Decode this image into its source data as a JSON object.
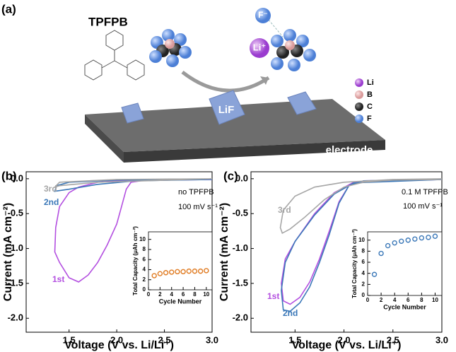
{
  "schematic": {
    "panel": "(a)",
    "molecule": "TPFPB",
    "anion": "F⁻",
    "cation": "Li⁺",
    "product": "LiF",
    "electrode": "electrode",
    "legend": [
      "Li",
      "B",
      "C",
      "F"
    ]
  },
  "chart_data": [
    {
      "type": "line",
      "panel": "(b)",
      "x_label": "Voltage (V vs. Li/Li⁺)",
      "y_label": "Current (mA cm⁻²)",
      "annotations": [
        "no TPFPB",
        "100 mV s⁻¹"
      ],
      "xlim": [
        1.05,
        3.0
      ],
      "ylim": [
        -2.2,
        0.1
      ],
      "xticks": [
        1.5,
        {
          "value": 2,
          "label": "2.0"
        },
        2.5,
        {
          "value": 3,
          "label": "3.0"
        }
      ],
      "yticks": [
        {
          "value": -2,
          "label": "-2.0"
        },
        -1.5,
        {
          "value": -1,
          "label": "-1.0"
        },
        -0.5,
        {
          "value": 0,
          "label": "0.0"
        }
      ],
      "series": [
        {
          "name": "1st",
          "color": "#b34fe0",
          "x": [
            3.0,
            2.6,
            2.3,
            2.15,
            2.1,
            2.05,
            2.0,
            1.9,
            1.8,
            1.7,
            1.6,
            1.5,
            1.4,
            1.35,
            1.36,
            1.4,
            1.5,
            1.6,
            1.8,
            2.0,
            2.5,
            3.0
          ],
          "values": [
            -0.01,
            -0.01,
            -0.02,
            -0.05,
            -0.15,
            -0.4,
            -0.65,
            -0.95,
            -1.2,
            -1.38,
            -1.48,
            -1.42,
            -1.2,
            -1.05,
            -0.7,
            -0.4,
            -0.2,
            -0.12,
            -0.05,
            -0.03,
            -0.02,
            -0.01
          ]
        },
        {
          "name": "2nd",
          "color": "#3b78b8",
          "x": [
            3.0,
            2.2,
            1.8,
            1.5,
            1.35,
            1.37,
            1.5,
            2.0,
            3.0
          ],
          "values": [
            -0.01,
            -0.03,
            -0.08,
            -0.15,
            -0.18,
            -0.1,
            -0.05,
            -0.02,
            -0.005
          ]
        },
        {
          "name": "3rd",
          "color": "#a6a6a6",
          "x": [
            3.0,
            1.8,
            1.4,
            1.35,
            1.4,
            2.0,
            3.0
          ],
          "values": [
            0,
            -0.05,
            -0.1,
            -0.12,
            -0.05,
            -0.01,
            0
          ]
        }
      ]
    },
    {
      "type": "scatter",
      "x_label": "Cycle Number",
      "y_label": "Total Capacity (μAh cm⁻²)",
      "xlim": [
        0,
        11
      ],
      "ylim": [
        0,
        11.5
      ],
      "xticks": [
        0,
        2,
        4,
        6,
        8,
        10
      ],
      "yticks": [
        0,
        2,
        4,
        6,
        8,
        10
      ],
      "color": "#e07b22",
      "x": [
        1,
        2,
        3,
        4,
        5,
        6,
        7,
        8,
        9,
        10
      ],
      "values": [
        2.8,
        3.2,
        3.4,
        3.5,
        3.6,
        3.6,
        3.7,
        3.7,
        3.7,
        3.8
      ]
    },
    {
      "type": "line",
      "panel": "(c)",
      "x_label": "Voltage (V vs. Li/Li⁺)",
      "y_label": "Current (mA cm⁻²)",
      "annotations": [
        "0.1 M TPFPB",
        "100 mV s⁻¹"
      ],
      "xlim": [
        1.05,
        3.0
      ],
      "ylim": [
        -2.2,
        0.1
      ],
      "xticks": [
        1.5,
        {
          "value": 2,
          "label": "2.0"
        },
        2.5,
        {
          "value": 3,
          "label": "3.0"
        }
      ],
      "yticks": [
        {
          "value": -2,
          "label": "-2.0"
        },
        -1.5,
        {
          "value": -1,
          "label": "-1.0"
        },
        -0.5,
        {
          "value": 0,
          "label": "0.0"
        }
      ],
      "series": [
        {
          "name": "1st",
          "color": "#b34fe0",
          "x": [
            3.0,
            2.2,
            2.05,
            1.95,
            1.85,
            1.75,
            1.65,
            1.55,
            1.45,
            1.38,
            1.36,
            1.4,
            1.5,
            1.7,
            1.9,
            2.1,
            3.0
          ],
          "values": [
            -0.01,
            -0.03,
            -0.1,
            -0.33,
            -0.75,
            -1.15,
            -1.48,
            -1.7,
            -1.8,
            -1.75,
            -1.5,
            -1.15,
            -0.9,
            -0.5,
            -0.2,
            -0.05,
            -0.01
          ]
        },
        {
          "name": "2nd",
          "color": "#3b78b8",
          "x": [
            3.0,
            2.2,
            2.05,
            1.95,
            1.85,
            1.75,
            1.65,
            1.55,
            1.45,
            1.38,
            1.36,
            1.4,
            1.5,
            1.7,
            1.9,
            2.1,
            3.0
          ],
          "values": [
            -0.01,
            -0.03,
            -0.1,
            -0.35,
            -0.8,
            -1.2,
            -1.55,
            -1.78,
            -1.9,
            -1.88,
            -1.6,
            -1.2,
            -0.9,
            -0.52,
            -0.22,
            -0.06,
            -0.01
          ]
        },
        {
          "name": "3rd",
          "color": "#a6a6a6",
          "x": [
            3.0,
            2.5,
            2.2,
            2.0,
            1.8,
            1.6,
            1.45,
            1.37,
            1.35,
            1.38,
            1.5,
            1.7,
            2.0,
            2.5,
            3.0
          ],
          "values": [
            -0.01,
            -0.02,
            -0.05,
            -0.12,
            -0.3,
            -0.55,
            -0.72,
            -0.78,
            -0.7,
            -0.45,
            -0.25,
            -0.12,
            -0.05,
            -0.01,
            0
          ]
        }
      ]
    },
    {
      "type": "scatter",
      "x_label": "Cycle Number",
      "y_label": "Total Capacity (μAh cm⁻²)",
      "xlim": [
        0,
        11
      ],
      "ylim": [
        0,
        11.5
      ],
      "xticks": [
        0,
        2,
        4,
        6,
        8,
        10
      ],
      "yticks": [
        0,
        2,
        4,
        6,
        8,
        10
      ],
      "color": "#3b78b8",
      "x": [
        1,
        2,
        3,
        4,
        5,
        6,
        7,
        8,
        9,
        10
      ],
      "values": [
        3.8,
        7.6,
        9.0,
        9.5,
        9.8,
        10.0,
        10.2,
        10.4,
        10.5,
        10.7
      ]
    }
  ]
}
